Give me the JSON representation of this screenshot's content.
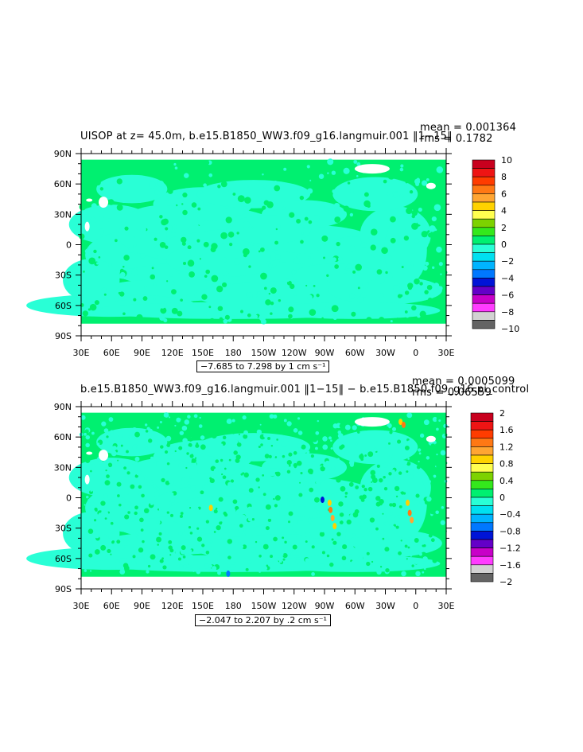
{
  "panels": [
    {
      "title": "UISOP  at z=  45.0m, b.e15.B1850_WW3.f09_g16.langmuir.001 ‖1−15‖",
      "stats_mean": "mean = 0.001364",
      "stats_rms": "rms = 0.1782",
      "range_label": "−7.685 to 7.298 by 1 cm s⁻¹",
      "colorbar_labels": [
        "10",
        "8",
        "6",
        "4",
        "2",
        "0",
        "−2",
        "−4",
        "−6",
        "−8",
        "−10"
      ],
      "colorbar_colors": [
        "#c8001e",
        "#ee1414",
        "#ff3c00",
        "#ff7814",
        "#ffa532",
        "#ffd200",
        "#ffff50",
        "#7dd200",
        "#34e81c",
        "#00f070",
        "#29ffd6",
        "#00e0f0",
        "#00b4ff",
        "#0078ff",
        "#0014d7",
        "#6400c8",
        "#c800c8",
        "#ff3cff",
        "#d2d2d2",
        "#646464"
      ],
      "noise": "low"
    },
    {
      "title": "b.e15.B1850_WW3.f09_g16.langmuir.001 ‖1−15‖ − b.e15.B1850.f09_g16.pi_control",
      "stats_mean": "mean = 0.0005099",
      "stats_rms": "rms = 0.06559",
      "range_label": "−2.047 to 2.207 by .2 cm s⁻¹",
      "colorbar_labels": [
        "2",
        "1.6",
        "1.2",
        "0.8",
        "0.4",
        "0",
        "−0.4",
        "−0.8",
        "−1.2",
        "−1.6",
        "−2"
      ],
      "colorbar_colors": [
        "#c8001e",
        "#ee1414",
        "#ff3c00",
        "#ff7814",
        "#ffa532",
        "#ffd200",
        "#ffff50",
        "#7dd200",
        "#34e81c",
        "#00f070",
        "#29ffd6",
        "#00e0f0",
        "#00b4ff",
        "#0078ff",
        "#0014d7",
        "#6400c8",
        "#c800c8",
        "#ff3cff",
        "#d2d2d2",
        "#646464"
      ],
      "noise": "high"
    }
  ],
  "chart_data": [
    {
      "type": "heatmap",
      "title": "UISOP  at z=  45.0m, b.e15.B1850_WW3.f09_g16.langmuir.001 ‖1−15‖",
      "x_tick_labels": [
        "30E",
        "60E",
        "90E",
        "120E",
        "150E",
        "180",
        "150W",
        "120W",
        "90W",
        "60W",
        "30W",
        "0",
        "30E"
      ],
      "y_tick_labels": [
        "90N",
        "60N",
        "30N",
        "0",
        "30S",
        "60S",
        "90S"
      ],
      "xlim": [
        30,
        390
      ],
      "ylim": [
        -90,
        90
      ],
      "contour_levels": [
        -10,
        -9,
        -8,
        -7,
        -6,
        -5,
        -4,
        -3,
        -2,
        -1,
        0,
        1,
        2,
        3,
        4,
        5,
        6,
        7,
        8,
        9,
        10
      ],
      "data_range": [
        -7.685,
        7.298
      ],
      "units": "cm s⁻¹",
      "mean": 0.001364,
      "rms": 0.1782
    },
    {
      "type": "heatmap",
      "title": "b.e15.B1850_WW3.f09_g16.langmuir.001 ‖1−15‖ − b.e15.B1850.f09_g16.pi_control",
      "x_tick_labels": [
        "30E",
        "60E",
        "90E",
        "120E",
        "150E",
        "180",
        "150W",
        "120W",
        "90W",
        "60W",
        "30W",
        "0",
        "30E"
      ],
      "y_tick_labels": [
        "90N",
        "60N",
        "30N",
        "0",
        "30S",
        "60S",
        "90S"
      ],
      "xlim": [
        30,
        390
      ],
      "ylim": [
        -90,
        90
      ],
      "contour_levels": [
        -2,
        -1.8,
        -1.6,
        -1.4,
        -1.2,
        -1,
        -0.8,
        -0.6,
        -0.4,
        -0.2,
        0,
        0.2,
        0.4,
        0.6,
        0.8,
        1,
        1.2,
        1.4,
        1.6,
        1.8,
        2
      ],
      "data_range": [
        -2.047,
        2.207
      ],
      "units": "cm s⁻¹",
      "mean": 0.0005099,
      "rms": 0.06559
    }
  ]
}
